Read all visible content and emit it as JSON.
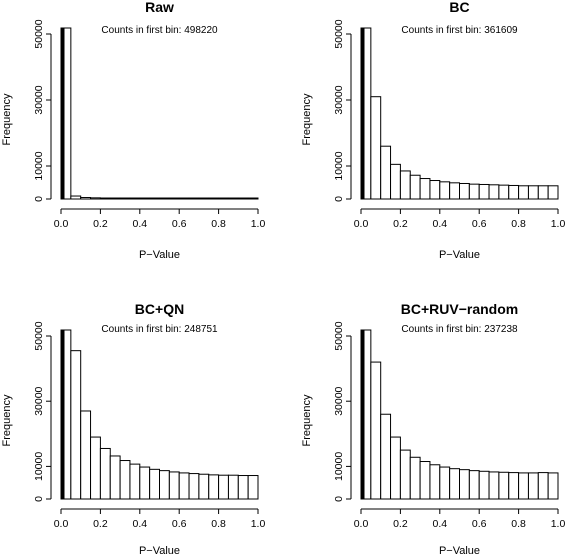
{
  "chart_data": [
    {
      "type": "bar",
      "title": "Raw",
      "annotation": "Counts in first bin: 498220",
      "xlabel": "P−Value",
      "ylabel": "Frequency",
      "xlim": [
        0,
        1
      ],
      "ylim": [
        0,
        50000
      ],
      "xticks": [
        "0.0",
        "0.2",
        "0.4",
        "0.6",
        "0.8",
        "1.0"
      ],
      "yticks": [
        "0",
        "10000",
        "30000",
        "50000"
      ],
      "bin_width": 0.05,
      "values": [
        52000,
        900,
        450,
        350,
        300,
        300,
        300,
        300,
        300,
        300,
        300,
        300,
        300,
        300,
        300,
        300,
        300,
        300,
        300,
        300
      ]
    },
    {
      "type": "bar",
      "title": "BC",
      "annotation": "Counts in first bin: 361609",
      "xlabel": "P−Value",
      "ylabel": "Frequency",
      "xlim": [
        0,
        1
      ],
      "ylim": [
        0,
        50000
      ],
      "xticks": [
        "0.0",
        "0.2",
        "0.4",
        "0.6",
        "0.8",
        "1.0"
      ],
      "yticks": [
        "0",
        "10000",
        "30000",
        "50000"
      ],
      "bin_width": 0.05,
      "values": [
        52000,
        31000,
        16000,
        10500,
        8500,
        7200,
        6200,
        5600,
        5200,
        4900,
        4700,
        4500,
        4400,
        4300,
        4200,
        4100,
        4000,
        4000,
        4000,
        4000
      ]
    },
    {
      "type": "bar",
      "title": "BC+QN",
      "annotation": "Counts in first bin: 248751",
      "xlabel": "P−Value",
      "ylabel": "Frequency",
      "xlim": [
        0,
        1
      ],
      "ylim": [
        0,
        50000
      ],
      "xticks": [
        "0.0",
        "0.2",
        "0.4",
        "0.6",
        "0.8",
        "1.0"
      ],
      "yticks": [
        "0",
        "10000",
        "30000",
        "50000"
      ],
      "bin_width": 0.05,
      "values": [
        52000,
        45500,
        27000,
        19000,
        15500,
        13200,
        11800,
        10700,
        9800,
        9100,
        8700,
        8300,
        8000,
        7800,
        7600,
        7400,
        7300,
        7300,
        7200,
        7200
      ]
    },
    {
      "type": "bar",
      "title": "BC+RUV−random",
      "annotation": "Counts in first bin: 237238",
      "xlabel": "P−Value",
      "ylabel": "Frequency",
      "xlim": [
        0,
        1
      ],
      "ylim": [
        0,
        50000
      ],
      "xticks": [
        "0.0",
        "0.2",
        "0.4",
        "0.6",
        "0.8",
        "1.0"
      ],
      "yticks": [
        "0",
        "10000",
        "30000",
        "50000"
      ],
      "bin_width": 0.05,
      "values": [
        52000,
        42000,
        26000,
        19000,
        15000,
        12800,
        11500,
        10500,
        9800,
        9300,
        9000,
        8700,
        8500,
        8300,
        8200,
        8100,
        8000,
        8000,
        8100,
        8000
      ]
    }
  ],
  "colors": {
    "bar_fill": "#ffffff",
    "bar_stroke": "#000000",
    "axis": "#000000"
  }
}
